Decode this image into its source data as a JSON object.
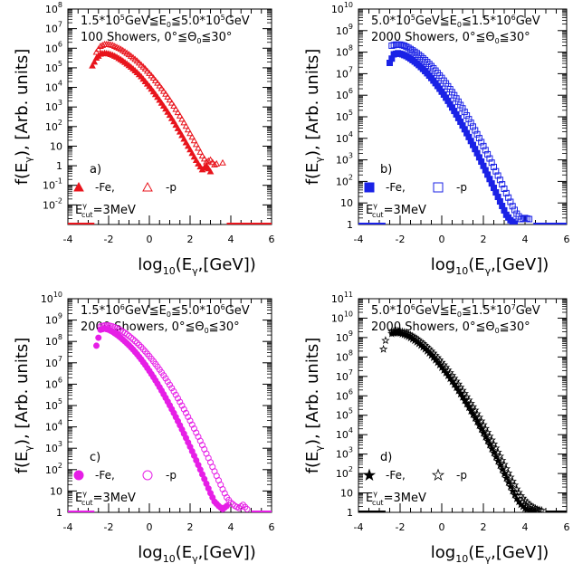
{
  "chart_data": [
    {
      "type": "scatter",
      "panel_label": "a)",
      "color": "#e8141c",
      "marker_fe": "triangle-filled",
      "marker_p": "triangle-open",
      "energy_range": "1.5*10^5GeV≦E0≦5.0*10^5GeV",
      "energy_lo": "1.5*10",
      "energy_lo_exp": "5",
      "energy_mid": "GeV≦E",
      "energy_sub0": "0",
      "energy_mid2": "≦5.0*10",
      "energy_hi_exp": "5",
      "energy_unit": "GeV",
      "showers": "100 Showers, 0°≦Θ0≦30°",
      "showers_text": "100 Showers, 0°≦Θ",
      "showers_sub": "0",
      "showers_tail": "≦30°",
      "legend_fe": "-Fe,",
      "legend_p": "-p",
      "ecut_label": "E",
      "ecut_sup": "γ",
      "ecut_sub": "cut",
      "ecut_value": "=3MeV",
      "xlabel": "log10(Eγ,[GeV])",
      "ylabel": "f(Eγ), [Arb. units]",
      "xlim": [
        -4,
        6
      ],
      "ylim_exp": [
        -3,
        8
      ],
      "x_ticks": [
        "-4",
        "-2",
        "0",
        "2",
        "4",
        "6"
      ],
      "y_ticks": [
        {
          "base": "10",
          "exp": "-2"
        },
        {
          "base": "10",
          "exp": "-1"
        },
        {
          "base": "1",
          "exp": ""
        },
        {
          "base": "10",
          "exp": ""
        },
        {
          "base": "10",
          "exp": "2"
        },
        {
          "base": "10",
          "exp": "3"
        },
        {
          "base": "10",
          "exp": "4"
        },
        {
          "base": "10",
          "exp": "5"
        },
        {
          "base": "10",
          "exp": "6"
        },
        {
          "base": "10",
          "exp": "7"
        },
        {
          "base": "10",
          "exp": "8"
        }
      ],
      "series": [
        {
          "name": "-Fe",
          "x": [
            -2.8,
            -2.6,
            -2.4,
            -2.2,
            -2.0,
            -1.8,
            -1.6,
            -1.4,
            -1.2,
            -1.0,
            -0.8,
            -0.6,
            -0.4,
            -0.2,
            0.0,
            0.2,
            0.4,
            0.6,
            0.8,
            1.0,
            1.2,
            1.4,
            1.6,
            1.8,
            2.0,
            2.2,
            2.4,
            2.6,
            2.8,
            3.0
          ],
          "log10_y": [
            5.1,
            5.5,
            5.7,
            5.75,
            5.72,
            5.65,
            5.55,
            5.42,
            5.28,
            5.12,
            4.95,
            4.76,
            4.55,
            4.3,
            4.05,
            3.78,
            3.5,
            3.2,
            2.9,
            2.58,
            2.25,
            1.9,
            1.55,
            1.18,
            0.82,
            0.45,
            0.1,
            -0.2,
            0.0,
            -0.3
          ]
        },
        {
          "name": "-p",
          "x": [
            -2.6,
            -2.4,
            -2.2,
            -2.0,
            -1.8,
            -1.6,
            -1.4,
            -1.2,
            -1.0,
            -0.8,
            -0.6,
            -0.4,
            -0.2,
            0.0,
            0.2,
            0.4,
            0.6,
            0.8,
            1.0,
            1.2,
            1.4,
            1.6,
            1.8,
            2.0,
            2.2,
            2.4,
            2.6,
            2.8,
            3.0,
            3.2,
            3.6
          ],
          "log10_y": [
            5.8,
            6.1,
            6.2,
            6.2,
            6.15,
            6.05,
            5.95,
            5.82,
            5.68,
            5.52,
            5.35,
            5.15,
            4.95,
            4.72,
            4.48,
            4.22,
            3.95,
            3.66,
            3.36,
            3.05,
            2.72,
            2.38,
            2.02,
            1.65,
            1.28,
            0.9,
            0.5,
            0.2,
            0.3,
            0.05,
            0.15
          ]
        }
      ]
    },
    {
      "type": "scatter",
      "panel_label": "b)",
      "color": "#1a22e6",
      "marker_fe": "square-filled",
      "marker_p": "square-open",
      "energy_range": "5.0*10^5GeV≦E0≦1.5*10^6GeV",
      "energy_lo": "5.0*10",
      "energy_lo_exp": "5",
      "energy_mid": "GeV≦E",
      "energy_sub0": "0",
      "energy_mid2": "≦1.5*10",
      "energy_hi_exp": "6",
      "energy_unit": "GeV",
      "showers": "2000 Showers, 0°≦Θ0≦30°",
      "showers_text": "2000 Showers, 0°≦Θ",
      "showers_sub": "0",
      "showers_tail": "≦30°",
      "legend_fe": "-Fe,",
      "legend_p": "-p",
      "ecut_label": "E",
      "ecut_sup": "γ",
      "ecut_sub": "cut",
      "ecut_value": "=3MeV",
      "xlabel": "log10(Eγ,[GeV])",
      "ylabel": "f(Eγ), [Arb. units]",
      "xlim": [
        -4,
        6
      ],
      "ylim_exp": [
        0,
        10
      ],
      "x_ticks": [
        "-4",
        "-2",
        "0",
        "2",
        "4",
        "6"
      ],
      "y_ticks": [
        {
          "base": "1",
          "exp": ""
        },
        {
          "base": "10",
          "exp": ""
        },
        {
          "base": "10",
          "exp": "2"
        },
        {
          "base": "10",
          "exp": "3"
        },
        {
          "base": "10",
          "exp": "4"
        },
        {
          "base": "10",
          "exp": "5"
        },
        {
          "base": "10",
          "exp": "6"
        },
        {
          "base": "10",
          "exp": "7"
        },
        {
          "base": "10",
          "exp": "8"
        },
        {
          "base": "10",
          "exp": "9"
        },
        {
          "base": "10",
          "exp": "10"
        }
      ],
      "series": [
        {
          "name": "-Fe",
          "x": [
            -2.5,
            -2.3,
            -2.1,
            -1.9,
            -1.7,
            -1.5,
            -1.3,
            -1.1,
            -0.9,
            -0.7,
            -0.5,
            -0.3,
            -0.1,
            0.1,
            0.3,
            0.5,
            0.7,
            0.9,
            1.1,
            1.3,
            1.5,
            1.7,
            1.9,
            2.1,
            2.3,
            2.5,
            2.7,
            2.9,
            3.1,
            3.3,
            3.5
          ],
          "log10_y": [
            7.5,
            7.9,
            7.95,
            7.9,
            7.82,
            7.7,
            7.56,
            7.4,
            7.22,
            7.02,
            6.8,
            6.56,
            6.3,
            6.03,
            5.74,
            5.43,
            5.11,
            4.77,
            4.42,
            4.06,
            3.69,
            3.31,
            2.92,
            2.52,
            2.11,
            1.7,
            1.28,
            0.86,
            0.45,
            0.2,
            0.05
          ]
        },
        {
          "name": "-p",
          "x": [
            -2.4,
            -2.2,
            -2.0,
            -1.8,
            -1.6,
            -1.4,
            -1.2,
            -1.0,
            -0.8,
            -0.6,
            -0.4,
            -0.2,
            0.0,
            0.2,
            0.4,
            0.6,
            0.8,
            1.0,
            1.2,
            1.4,
            1.6,
            1.8,
            2.0,
            2.2,
            2.4,
            2.6,
            2.8,
            3.0,
            3.2,
            3.4,
            3.6,
            3.8,
            4.0,
            4.2
          ],
          "log10_y": [
            8.3,
            8.35,
            8.35,
            8.3,
            8.2,
            8.08,
            7.95,
            7.8,
            7.63,
            7.45,
            7.25,
            7.03,
            6.8,
            6.55,
            6.28,
            6.0,
            5.7,
            5.39,
            5.06,
            4.72,
            4.37,
            4.01,
            3.64,
            3.26,
            2.87,
            2.47,
            2.07,
            1.66,
            1.25,
            0.85,
            0.5,
            0.25,
            0.3,
            0.25
          ]
        }
      ]
    },
    {
      "type": "scatter",
      "panel_label": "c)",
      "color": "#e61ee6",
      "marker_fe": "circle-filled",
      "marker_p": "circle-open",
      "energy_range": "1.5*10^6GeV≦E0≦5.0*10^6GeV",
      "energy_lo": "1.5*10",
      "energy_lo_exp": "6",
      "energy_mid": "GeV≦E",
      "energy_sub0": "0",
      "energy_mid2": "≦5.0*10",
      "energy_hi_exp": "6",
      "energy_unit": "GeV",
      "showers": "2000 Showers, 0°≦Θ0≦30°",
      "showers_text": "2000 Showers, 0°≦Θ",
      "showers_sub": "0",
      "showers_tail": "≦30°",
      "legend_fe": "-Fe,",
      "legend_p": "-p",
      "ecut_label": "E",
      "ecut_sup": "γ",
      "ecut_sub": "cut",
      "ecut_value": "=3MeV",
      "xlabel": "log10(Eγ,[GeV])",
      "ylabel": "f(Eγ), [Arb. units]",
      "xlim": [
        -4,
        6
      ],
      "ylim_exp": [
        0,
        10
      ],
      "x_ticks": [
        "-4",
        "-2",
        "0",
        "2",
        "4",
        "6"
      ],
      "y_ticks": [
        {
          "base": "1",
          "exp": ""
        },
        {
          "base": "10",
          "exp": ""
        },
        {
          "base": "10",
          "exp": "2"
        },
        {
          "base": "10",
          "exp": "3"
        },
        {
          "base": "10",
          "exp": "4"
        },
        {
          "base": "10",
          "exp": "5"
        },
        {
          "base": "10",
          "exp": "6"
        },
        {
          "base": "10",
          "exp": "7"
        },
        {
          "base": "10",
          "exp": "8"
        },
        {
          "base": "10",
          "exp": "9"
        },
        {
          "base": "10",
          "exp": "10"
        }
      ],
      "series": [
        {
          "name": "-Fe",
          "x": [
            -2.6,
            -2.4,
            -2.2,
            -2.0,
            -1.8,
            -1.6,
            -1.4,
            -1.2,
            -1.0,
            -0.8,
            -0.6,
            -0.4,
            -0.2,
            0.0,
            0.2,
            0.4,
            0.6,
            0.8,
            1.0,
            1.2,
            1.4,
            1.6,
            1.8,
            2.0,
            2.2,
            2.4,
            2.6,
            2.8,
            3.0,
            3.2,
            3.4,
            3.6,
            3.8
          ],
          "log10_y": [
            7.8,
            8.55,
            8.6,
            8.55,
            8.45,
            8.32,
            8.17,
            8.0,
            7.82,
            7.62,
            7.4,
            7.16,
            6.9,
            6.62,
            6.33,
            6.02,
            5.7,
            5.36,
            5.01,
            4.65,
            4.27,
            3.88,
            3.48,
            3.07,
            2.65,
            2.22,
            1.78,
            1.34,
            0.9,
            0.5,
            0.3,
            0.15,
            0.3
          ]
        },
        {
          "name": "-p",
          "x": [
            -2.4,
            -2.2,
            -2.0,
            -1.8,
            -1.6,
            -1.4,
            -1.2,
            -1.0,
            -0.8,
            -0.6,
            -0.4,
            -0.2,
            0.0,
            0.2,
            0.4,
            0.6,
            0.8,
            1.0,
            1.2,
            1.4,
            1.6,
            1.8,
            2.0,
            2.2,
            2.4,
            2.6,
            2.8,
            3.0,
            3.2,
            3.4,
            3.6,
            3.8,
            4.0,
            4.2,
            4.4,
            4.6,
            4.8
          ],
          "log10_y": [
            8.7,
            8.75,
            8.75,
            8.7,
            8.62,
            8.52,
            8.4,
            8.26,
            8.1,
            7.93,
            7.74,
            7.53,
            7.31,
            7.07,
            6.82,
            6.55,
            6.27,
            5.97,
            5.66,
            5.34,
            5.0,
            4.65,
            4.29,
            3.92,
            3.54,
            3.15,
            2.75,
            2.34,
            1.92,
            1.5,
            1.08,
            0.7,
            0.45,
            0.3,
            0.2,
            0.35,
            0.15
          ]
        }
      ]
    },
    {
      "type": "scatter",
      "panel_label": "d)",
      "color": "#000000",
      "marker_fe": "star-filled",
      "marker_p": "star-open",
      "energy_range": "5.0*10^6GeV≦E0≦1.5*10^7GeV",
      "energy_lo": "5.0*10",
      "energy_lo_exp": "6",
      "energy_mid": "GeV≦E",
      "energy_sub0": "0",
      "energy_mid2": "≦1.5*10",
      "energy_hi_exp": "7",
      "energy_unit": "GeV",
      "showers": "2000 Showers, 0°≦Θ0≦30°",
      "showers_text": "2000 Showers, 0°≦Θ",
      "showers_sub": "0",
      "showers_tail": "≦30°",
      "legend_fe": "-Fe,",
      "legend_p": "-p",
      "ecut_label": "E",
      "ecut_sup": "γ",
      "ecut_sub": "cut",
      "ecut_value": "=3MeV",
      "xlabel": "log10(Eγ,[GeV])",
      "ylabel": "f(Eγ), [Arb. units]",
      "xlim": [
        -4,
        6
      ],
      "ylim_exp": [
        0,
        11
      ],
      "x_ticks": [
        "-4",
        "-2",
        "0",
        "2",
        "4",
        "6"
      ],
      "y_ticks": [
        {
          "base": "1",
          "exp": ""
        },
        {
          "base": "10",
          "exp": ""
        },
        {
          "base": "10",
          "exp": "2"
        },
        {
          "base": "10",
          "exp": "3"
        },
        {
          "base": "10",
          "exp": "4"
        },
        {
          "base": "10",
          "exp": "5"
        },
        {
          "base": "10",
          "exp": "6"
        },
        {
          "base": "10",
          "exp": "7"
        },
        {
          "base": "10",
          "exp": "8"
        },
        {
          "base": "10",
          "exp": "9"
        },
        {
          "base": "10",
          "exp": "10"
        },
        {
          "base": "10",
          "exp": "11"
        }
      ],
      "series": [
        {
          "name": "-Fe",
          "x": [
            -2.4,
            -2.2,
            -2.0,
            -1.8,
            -1.6,
            -1.4,
            -1.2,
            -1.0,
            -0.8,
            -0.6,
            -0.4,
            -0.2,
            0.0,
            0.2,
            0.4,
            0.6,
            0.8,
            1.0,
            1.2,
            1.4,
            1.6,
            1.8,
            2.0,
            2.2,
            2.4,
            2.6,
            2.8,
            3.0,
            3.2,
            3.4,
            3.6,
            3.8,
            4.0,
            4.2,
            4.4
          ],
          "log10_y": [
            9.2,
            9.25,
            9.22,
            9.15,
            9.05,
            8.92,
            8.77,
            8.6,
            8.41,
            8.2,
            7.97,
            7.72,
            7.46,
            7.18,
            6.89,
            6.58,
            6.26,
            5.93,
            5.58,
            5.22,
            4.85,
            4.47,
            4.08,
            3.68,
            3.27,
            2.85,
            2.42,
            1.98,
            1.54,
            1.1,
            0.7,
            0.4,
            0.2,
            0.1,
            0.05
          ]
        },
        {
          "name": "-p",
          "x": [
            -2.8,
            -2.4,
            -2.2,
            -2.0,
            -1.8,
            -1.6,
            -1.4,
            -1.2,
            -1.0,
            -0.8,
            -0.6,
            -0.4,
            -0.2,
            0.0,
            0.2,
            0.4,
            0.6,
            0.8,
            1.0,
            1.2,
            1.4,
            1.6,
            1.8,
            2.0,
            2.2,
            2.4,
            2.6,
            2.8,
            3.0,
            3.2,
            3.4,
            3.6,
            3.8,
            4.0,
            4.2,
            4.4,
            4.6,
            4.8
          ],
          "log10_y": [
            8.4,
            9.3,
            9.35,
            9.33,
            9.27,
            9.18,
            9.07,
            8.93,
            8.77,
            8.6,
            8.4,
            8.19,
            7.96,
            7.72,
            7.46,
            7.19,
            6.9,
            6.6,
            6.28,
            5.95,
            5.61,
            5.26,
            4.89,
            4.51,
            4.12,
            3.72,
            3.31,
            2.89,
            2.46,
            2.02,
            1.6,
            1.2,
            0.85,
            0.6,
            0.4,
            0.25,
            0.15,
            0.1
          ]
        }
      ]
    }
  ]
}
